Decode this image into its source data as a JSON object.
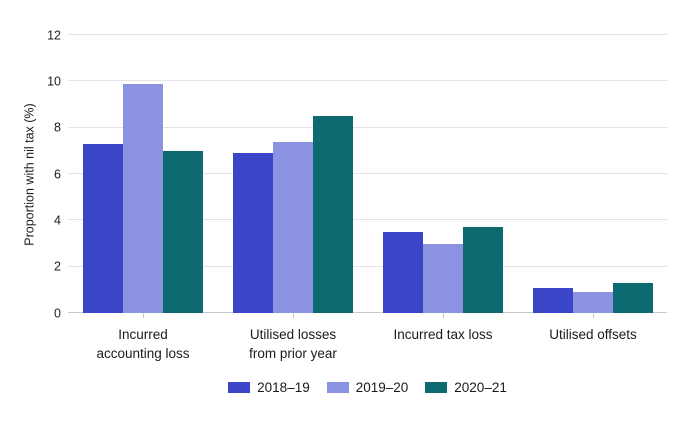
{
  "chart_data": {
    "type": "bar",
    "categories": [
      "Incurred accounting loss",
      "Utilised losses from prior year",
      "Incurred tax loss",
      "Utilised offsets"
    ],
    "category_display": [
      "Incurred\naccounting loss",
      "Utilised losses\nfrom prior year",
      "Incurred tax loss",
      "Utilised offsets"
    ],
    "series": [
      {
        "name": "2018–19",
        "color": "#3a45c8",
        "values": [
          7.3,
          6.9,
          3.5,
          1.1
        ]
      },
      {
        "name": "2019–20",
        "color": "#8b92e2",
        "values": [
          9.9,
          7.4,
          3.0,
          0.9
        ]
      },
      {
        "name": "2020–21",
        "color": "#0e6a71",
        "values": [
          7.0,
          8.5,
          3.7,
          1.3
        ]
      }
    ],
    "xlabel": "",
    "ylabel": "Proportion with nil tax (%)",
    "ylim": [
      0,
      12
    ],
    "yticks": [
      0,
      2,
      4,
      6,
      8,
      10,
      12
    ],
    "grid": "horizontal",
    "legend_position": "bottom",
    "colors": {
      "gridline": "#e3e3e3",
      "axis_line": "#c9c9c9",
      "text": "#1a1a1a",
      "background": "#ffffff"
    }
  }
}
